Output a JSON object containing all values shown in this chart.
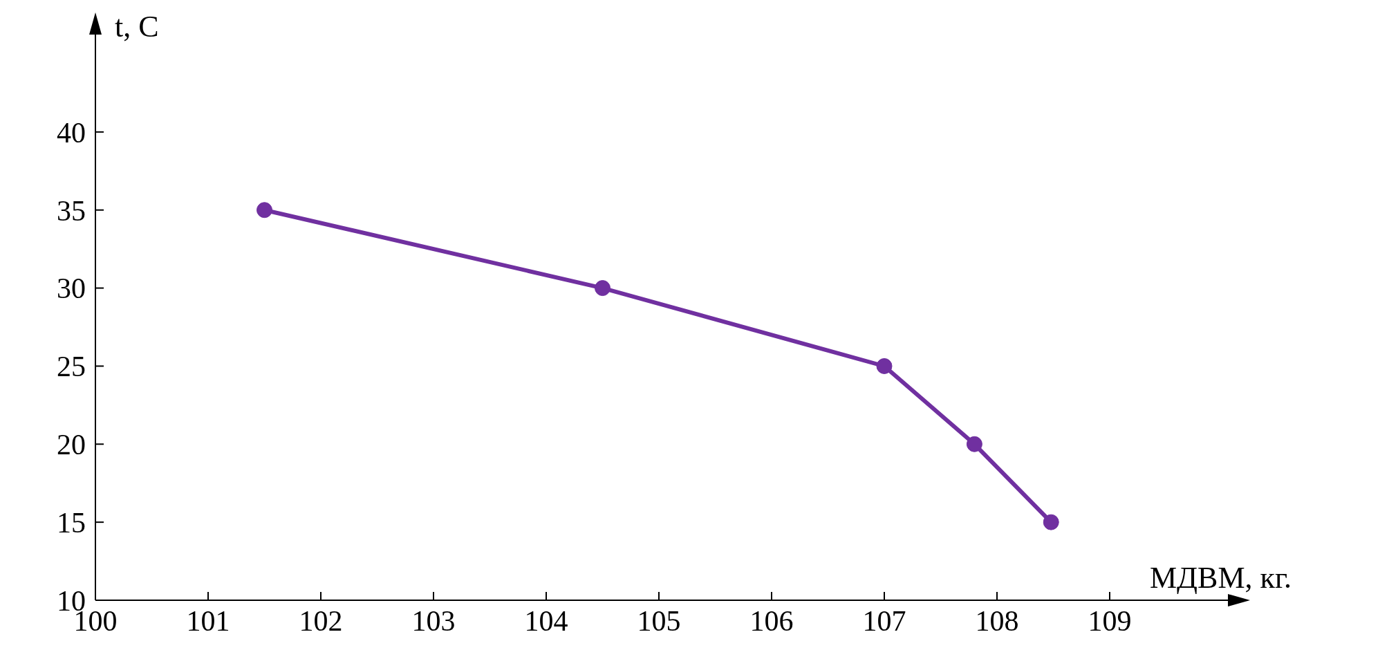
{
  "chart_data": {
    "type": "line",
    "xlabel": "МДВМ, кг.",
    "ylabel": "t, C",
    "x": [
      101.5,
      104.5,
      107,
      107.8,
      108.48
    ],
    "series": [
      {
        "color": "#7030a0",
        "values": [
          35,
          30,
          25,
          20,
          15
        ]
      }
    ],
    "xlim": [
      100,
      110
    ],
    "xticks": [
      100,
      101,
      102,
      103,
      104,
      105,
      106,
      107,
      108,
      109
    ],
    "ylim": [
      10,
      45
    ],
    "yticks": [
      10,
      15,
      20,
      25,
      30,
      35,
      40
    ],
    "marker": "circle",
    "line_style": "solid"
  }
}
